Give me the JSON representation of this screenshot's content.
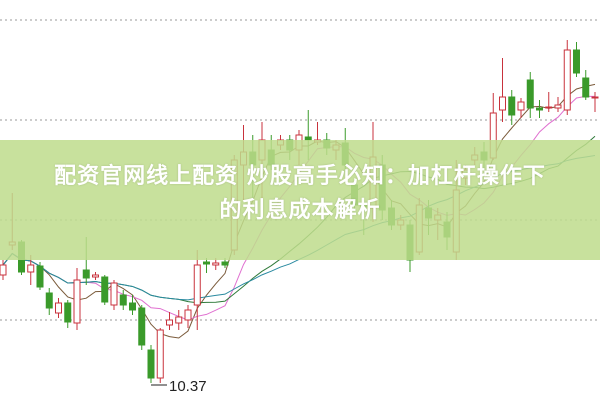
{
  "title_line1": "配资官网线上配资 炒股高手必知：加杠杆操作下",
  "title_line2": "的利息成本解析",
  "colors": {
    "up": "#c8323c",
    "down": "#3a9a2a",
    "grid": "#9a9a9a",
    "banner": "#bedc8c",
    "ma": [
      "#7a5a3a",
      "#e070d0",
      "#2f7a3a",
      "#2a8aa0"
    ]
  },
  "chart_data": {
    "type": "candlestick",
    "ylim": [
      10.19,
      14.2
    ],
    "grid": true,
    "gridlines": [
      11.0,
      12.0,
      13.0,
      14.0
    ],
    "moving_averages": [
      5,
      10,
      20,
      30
    ],
    "annotation": {
      "label": "10.37",
      "candle_index": 16
    },
    "ohlc": [
      [
        11.45,
        11.6,
        11.4,
        11.55
      ],
      [
        11.75,
        12.27,
        11.7,
        11.78
      ],
      [
        11.78,
        11.8,
        11.45,
        11.48
      ],
      [
        11.48,
        11.65,
        11.35,
        11.55
      ],
      [
        11.54,
        11.58,
        11.3,
        11.33
      ],
      [
        11.27,
        11.32,
        11.05,
        11.12
      ],
      [
        11.07,
        11.22,
        11.02,
        11.17
      ],
      [
        11.17,
        11.2,
        10.92,
        10.98
      ],
      [
        10.97,
        11.52,
        10.9,
        11.4
      ],
      [
        11.5,
        11.83,
        11.35,
        11.42
      ],
      [
        11.43,
        11.48,
        11.4,
        11.45
      ],
      [
        11.43,
        11.45,
        11.15,
        11.18
      ],
      [
        11.15,
        11.4,
        11.1,
        11.37
      ],
      [
        11.25,
        11.3,
        11.1,
        11.15
      ],
      [
        11.17,
        11.25,
        11.05,
        11.1
      ],
      [
        11.12,
        11.15,
        10.7,
        10.75
      ],
      [
        10.7,
        10.75,
        10.37,
        10.42
      ],
      [
        10.42,
        10.92,
        10.37,
        10.9
      ],
      [
        10.95,
        11.08,
        10.9,
        11.0
      ],
      [
        10.97,
        11.1,
        10.9,
        11.03
      ],
      [
        11.0,
        11.15,
        10.92,
        11.1
      ],
      [
        11.15,
        11.7,
        10.9,
        11.55
      ],
      [
        11.58,
        11.62,
        11.47,
        11.56
      ],
      [
        11.55,
        11.62,
        11.5,
        11.57
      ],
      [
        11.58,
        11.62,
        11.52,
        11.55
      ],
      [
        11.7,
        12.65,
        11.65,
        12.6
      ],
      [
        12.55,
        12.95,
        12.2,
        12.68
      ],
      [
        12.68,
        12.85,
        12.2,
        12.55
      ],
      [
        12.6,
        12.98,
        12.2,
        12.8
      ],
      [
        12.7,
        12.85,
        12.5,
        12.55
      ],
      [
        12.75,
        12.85,
        12.7,
        12.8
      ],
      [
        12.8,
        12.85,
        12.6,
        12.7
      ],
      [
        12.7,
        12.9,
        12.55,
        12.85
      ],
      [
        12.83,
        13.1,
        12.6,
        12.8
      ],
      [
        12.78,
        12.98,
        12.75,
        12.8
      ],
      [
        12.8,
        12.87,
        12.65,
        12.72
      ],
      [
        12.7,
        12.8,
        12.6,
        12.75
      ],
      [
        12.77,
        12.92,
        12.48,
        12.55
      ],
      [
        12.35,
        12.4,
        12.1,
        12.15
      ],
      [
        12.17,
        12.2,
        11.85,
        12.13
      ],
      [
        12.12,
        12.98,
        11.98,
        12.63
      ],
      [
        12.55,
        12.65,
        12.0,
        12.1
      ],
      [
        12.12,
        12.2,
        11.9,
        11.95
      ],
      [
        11.95,
        12.05,
        11.9,
        12.0
      ],
      [
        11.95,
        12.0,
        11.48,
        11.6
      ],
      [
        11.68,
        12.22,
        11.65,
        12.15
      ],
      [
        12.12,
        12.2,
        11.85,
        12.02
      ],
      [
        12.0,
        12.12,
        11.8,
        12.05
      ],
      [
        11.98,
        12.08,
        11.7,
        11.83
      ],
      [
        11.68,
        12.6,
        11.6,
        12.3
      ],
      [
        12.42,
        12.55,
        12.35,
        12.5
      ],
      [
        12.6,
        12.73,
        12.55,
        12.65
      ],
      [
        12.68,
        12.78,
        12.5,
        12.6
      ],
      [
        12.62,
        13.27,
        12.6,
        13.07
      ],
      [
        13.1,
        13.62,
        12.98,
        13.23
      ],
      [
        13.23,
        13.3,
        12.95,
        13.05
      ],
      [
        13.1,
        13.22,
        13.02,
        13.18
      ],
      [
        13.4,
        13.48,
        13.02,
        13.12
      ],
      [
        13.12,
        13.2,
        13.02,
        13.1
      ],
      [
        13.12,
        13.28,
        13.08,
        13.13
      ],
      [
        13.12,
        13.23,
        13.08,
        13.15
      ],
      [
        13.1,
        13.8,
        13.05,
        13.7
      ],
      [
        13.7,
        13.78,
        13.43,
        13.47
      ],
      [
        13.42,
        13.5,
        13.2,
        13.23
      ],
      [
        13.22,
        13.28,
        13.08,
        13.23
      ]
    ]
  }
}
